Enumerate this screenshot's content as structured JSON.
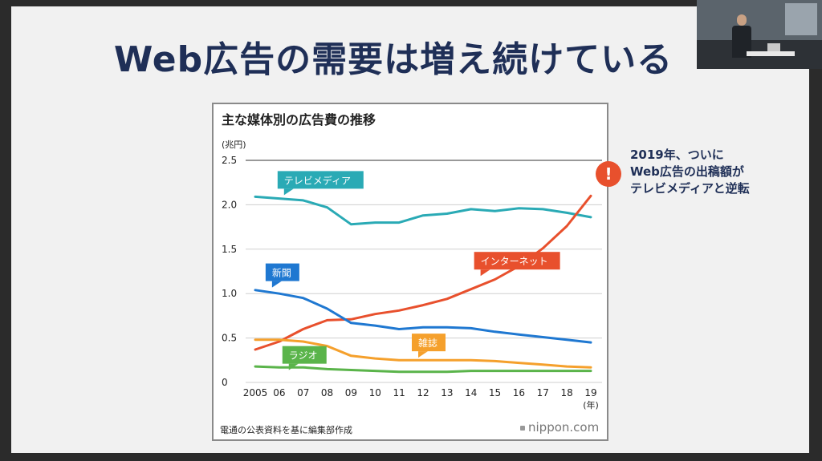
{
  "slide": {
    "title": "Web広告の需要は増え続けている",
    "callout": {
      "icon": "exclamation-icon",
      "icon_glyph": "!",
      "lines": [
        "2019年、ついに",
        "Web広告の出稿額が",
        "テレビメディアと逆転"
      ]
    },
    "source_note": "電通の公表資料を基に編集部作成",
    "brand": "nippon.com"
  },
  "chart_data": {
    "type": "line",
    "title": "主な媒体別の広告費の推移",
    "y_unit": "(兆円)",
    "x_unit": "(年)",
    "x_labels": [
      "2005",
      "06",
      "07",
      "08",
      "09",
      "10",
      "11",
      "12",
      "13",
      "14",
      "15",
      "16",
      "17",
      "18",
      "19"
    ],
    "ylim": [
      0,
      2.5
    ],
    "y_ticks": [
      "0",
      "0.5",
      "1.0",
      "1.5",
      "2.0",
      "2.5"
    ],
    "grid": true,
    "series": [
      {
        "name": "テレビメディア",
        "color": "#2aaab5",
        "values": [
          2.09,
          2.07,
          2.05,
          1.97,
          1.78,
          1.8,
          1.8,
          1.88,
          1.9,
          1.95,
          1.93,
          1.96,
          1.95,
          1.91,
          1.86
        ]
      },
      {
        "name": "インターネット",
        "color": "#e8502d",
        "values": [
          0.37,
          0.46,
          0.6,
          0.7,
          0.71,
          0.77,
          0.81,
          0.87,
          0.94,
          1.05,
          1.16,
          1.31,
          1.51,
          1.76,
          2.1
        ]
      },
      {
        "name": "新聞",
        "color": "#1f78d1",
        "values": [
          1.04,
          1.0,
          0.95,
          0.83,
          0.67,
          0.64,
          0.6,
          0.62,
          0.62,
          0.61,
          0.57,
          0.54,
          0.51,
          0.48,
          0.45
        ]
      },
      {
        "name": "雑誌",
        "color": "#f5a02c",
        "values": [
          0.48,
          0.48,
          0.46,
          0.41,
          0.3,
          0.27,
          0.25,
          0.25,
          0.25,
          0.25,
          0.24,
          0.22,
          0.2,
          0.18,
          0.17
        ]
      },
      {
        "name": "ラジオ",
        "color": "#5ab44a",
        "values": [
          0.18,
          0.17,
          0.17,
          0.15,
          0.14,
          0.13,
          0.12,
          0.12,
          0.12,
          0.13,
          0.13,
          0.13,
          0.13,
          0.13,
          0.13
        ]
      }
    ]
  }
}
